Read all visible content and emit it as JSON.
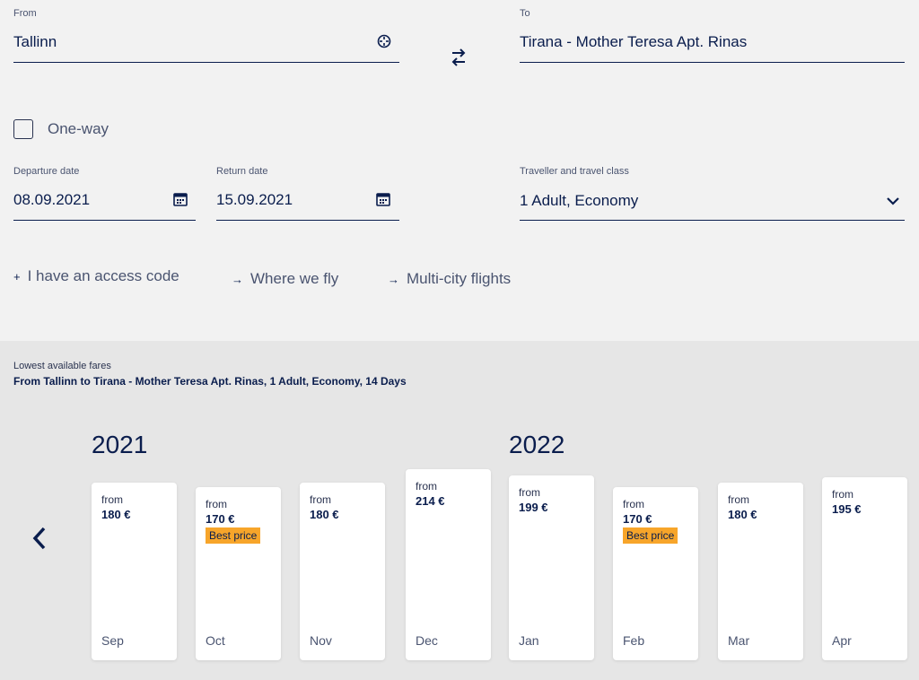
{
  "from": {
    "label": "From",
    "value": "Tallinn"
  },
  "to": {
    "label": "To",
    "value": "Tirana - Mother Teresa Apt. Rinas"
  },
  "oneway": {
    "label": "One-way",
    "checked": false
  },
  "departure": {
    "label": "Departure date",
    "value": "08.09.2021"
  },
  "return": {
    "label": "Return date",
    "value": "15.09.2021"
  },
  "traveller": {
    "label": "Traveller and travel class",
    "value": "1 Adult, Economy"
  },
  "links": {
    "access_code": "I have an access code",
    "where_we_fly": "Where we fly",
    "multi_city": "Multi-city flights"
  },
  "fares": {
    "caption": "Lowest available fares",
    "summary": "From Tallinn to Tirana - Mother Teresa Apt. Rinas, 1 Adult, Economy, 14 Days",
    "years": [
      "2021",
      "2022"
    ],
    "best_label": "Best price",
    "from_label": "from",
    "months": [
      {
        "month": "Sep",
        "price": "180 €",
        "best": false
      },
      {
        "month": "Oct",
        "price": "170 €",
        "best": true
      },
      {
        "month": "Nov",
        "price": "180 €",
        "best": false
      },
      {
        "month": "Dec",
        "price": "214 €",
        "best": false
      },
      {
        "month": "Jan",
        "price": "199 €",
        "best": false
      },
      {
        "month": "Feb",
        "price": "170 €",
        "best": true
      },
      {
        "month": "Mar",
        "price": "180 €",
        "best": false
      },
      {
        "month": "Apr",
        "price": "195 €",
        "best": false
      }
    ]
  },
  "colors": {
    "accent": "#0a1d4d",
    "best_badge": "#f7a52a",
    "panel": "#f2f2f2",
    "fares_bg": "#e6e6e6"
  }
}
